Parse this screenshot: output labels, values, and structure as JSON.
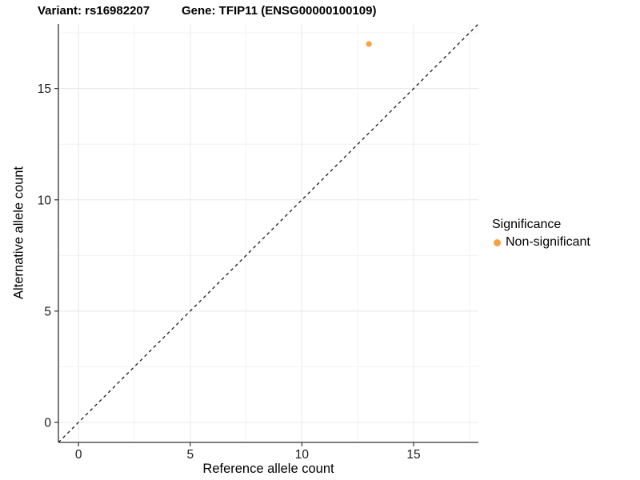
{
  "chart_data": {
    "type": "scatter",
    "titles": {
      "variant": "Variant: rs16982207",
      "gene": "Gene: TFIP11 (ENSG00000100109)"
    },
    "xlabel": "Reference allele count",
    "ylabel": "Alternative allele count",
    "xlim": [
      -0.9,
      17.9
    ],
    "ylim": [
      -0.9,
      17.9
    ],
    "x_ticks": [
      0,
      5,
      10,
      15
    ],
    "y_ticks": [
      0,
      5,
      10,
      15
    ],
    "x_minor_ticks": [
      2.5,
      7.5,
      12.5,
      17.5
    ],
    "y_minor_ticks": [
      2.5,
      7.5,
      12.5,
      17.5
    ],
    "grid": true,
    "reference_line": {
      "type": "identity",
      "style": "dashed",
      "color": "#1a1a1a"
    },
    "series": [
      {
        "name": "Non-significant",
        "color": "#f9a242",
        "points": [
          {
            "x": 13,
            "y": 17
          }
        ]
      }
    ],
    "legend": {
      "title": "Significance",
      "position": "right",
      "items": [
        {
          "label": "Non-significant",
          "color": "#f9a242"
        }
      ]
    },
    "style_colors": {
      "axis_line": "#333333",
      "major_grid": "#e8e8e8",
      "minor_grid": "#f2f2f2",
      "tick_label": "#1a1a1a",
      "background": "#ffffff"
    }
  }
}
